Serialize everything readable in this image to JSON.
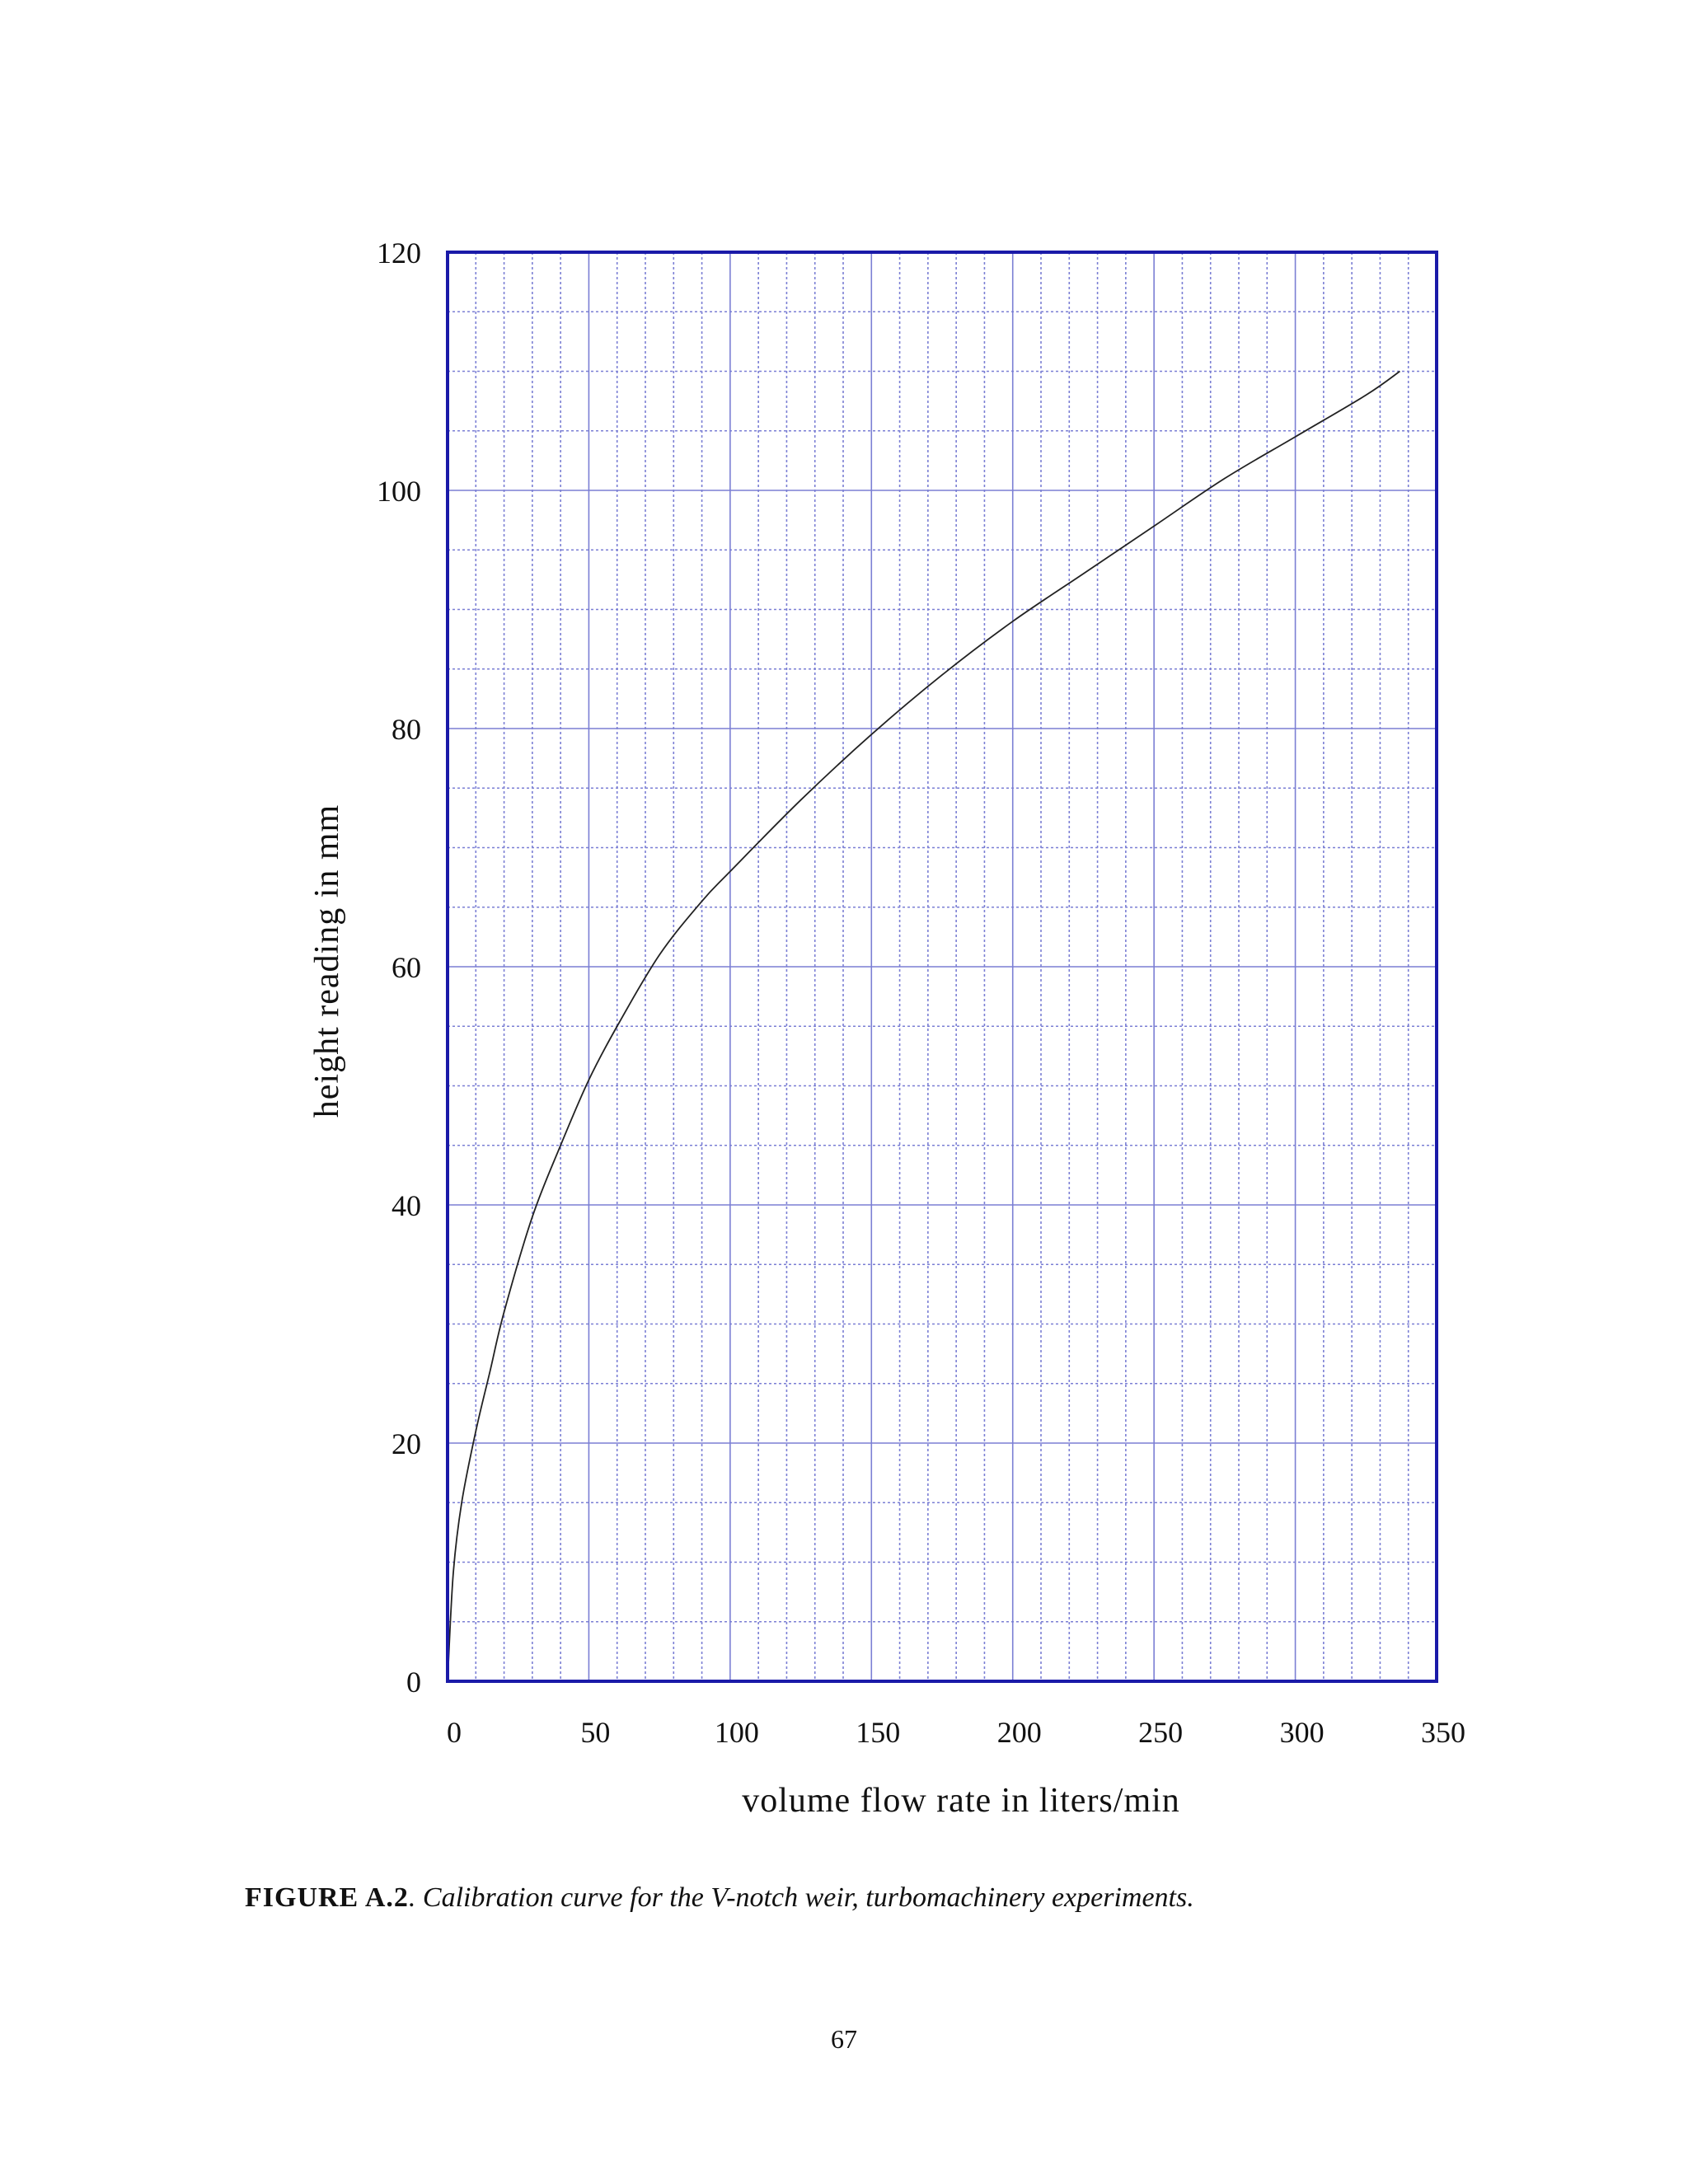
{
  "chart_data": {
    "type": "line",
    "xlabel": "volume flow rate in liters/min",
    "ylabel": "height reading in mm",
    "xlim": [
      0,
      350
    ],
    "ylim": [
      0,
      120
    ],
    "x_ticks": [
      0,
      50,
      100,
      150,
      200,
      250,
      300,
      350
    ],
    "y_ticks": [
      0,
      20,
      40,
      60,
      80,
      100,
      120
    ],
    "x_minor_step": 10,
    "y_minor_step": 5,
    "grid": true,
    "grid_color": "#7b7fd4",
    "frame_color": "#1a1aa8",
    "line_color": "#222222",
    "series": [
      {
        "name": "",
        "x": [
          0,
          2,
          5,
          10,
          15,
          20,
          30,
          40,
          50,
          60,
          75,
          90,
          100,
          125,
          150,
          175,
          200,
          225,
          250,
          275,
          300,
          325,
          337
        ],
        "y": [
          0,
          9,
          15,
          21,
          26,
          31,
          39,
          45,
          50.5,
          55,
          61,
          65.5,
          68,
          74,
          79.5,
          84.5,
          89,
          93,
          97,
          101,
          104.5,
          108,
          110
        ]
      }
    ]
  },
  "caption": {
    "label": "FIGURE A.2",
    "text": ". Calibration curve for the V-notch weir, turbomachinery experiments."
  },
  "page_number": "67"
}
